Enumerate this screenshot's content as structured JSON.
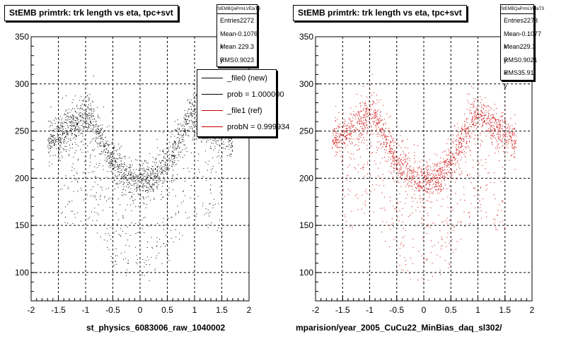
{
  "colors": {
    "data_file0": "#000000",
    "data_file1": "#cc0000",
    "frame": "#000000",
    "grid": "#000000"
  },
  "panels": [
    {
      "title": "StEMB primtrk: trk length vs eta, tpc+svt",
      "stats": {
        "name": "StEMBQaPrmLVEtaTS",
        "rows": [
          {
            "label": "Entries",
            "value": "2272"
          },
          {
            "label": "Mean x",
            "value": "-0.1076"
          },
          {
            "label": "Mean y",
            "value": "229.3"
          },
          {
            "label": "RMS x",
            "value": "0.9023"
          }
        ]
      },
      "legend": [
        {
          "label": "_file0 (new)",
          "color": "#000000"
        },
        {
          "label": "prob = 1.000000",
          "color": "#000000"
        },
        {
          "label": "_file1 (ref)",
          "color": "#cc0000"
        },
        {
          "label": "probN = 0.999934",
          "color": "#cc0000"
        }
      ],
      "x_title": "st_physics_6083006_raw_1040002"
    },
    {
      "title": "StEMB primtrk: trk length vs eta, tpc+svt",
      "stats": {
        "name": "StEMBQaPrmLVEtaTS",
        "rows": [
          {
            "label": "Entries",
            "value": "2273"
          },
          {
            "label": "Mean x",
            "value": "-0.1077"
          },
          {
            "label": "Mean y",
            "value": "229.3"
          },
          {
            "label": "RMS x",
            "value": "0.9021"
          },
          {
            "label": "RMS y",
            "value": "35.91"
          }
        ]
      },
      "x_title": "mparision/year_2005_CuCu22_MinBias_daq_sl302/"
    }
  ],
  "chart_data": [
    {
      "type": "scatter",
      "title": "StEMB primtrk: trk length vs eta, tpc+svt",
      "xlim": [
        -2,
        2
      ],
      "ylim": [
        70,
        350
      ],
      "x_ticks": [
        -2,
        -1.5,
        -1,
        -0.5,
        0,
        0.5,
        1,
        1.5,
        2
      ],
      "y_ticks": [
        100,
        150,
        200,
        250,
        300,
        350
      ],
      "grid": true,
      "series": [
        {
          "name": "_file0 (new)",
          "color": "#000000",
          "entries": 2272,
          "mean_x": -0.1076,
          "mean_y": 229.3,
          "rms_x": 0.9023
        }
      ],
      "xlabel": "st_physics_6083006_raw_1040002"
    },
    {
      "type": "scatter",
      "title": "StEMB primtrk: trk length vs eta, tpc+svt",
      "xlim": [
        -2,
        2
      ],
      "ylim": [
        70,
        350
      ],
      "x_ticks": [
        -2,
        -1.5,
        -1,
        -0.5,
        0,
        0.5,
        1,
        1.5,
        2
      ],
      "y_ticks": [
        100,
        150,
        200,
        250,
        300,
        350
      ],
      "grid": true,
      "series": [
        {
          "name": "_file1 (ref)",
          "color": "#cc0000",
          "entries": 2273,
          "mean_x": -0.1077,
          "mean_y": 229.3,
          "rms_x": 0.9021,
          "rms_y": 35.91
        }
      ],
      "xlabel": "mparision/year_2005_CuCu22_MinBias_daq_sl302/"
    }
  ]
}
